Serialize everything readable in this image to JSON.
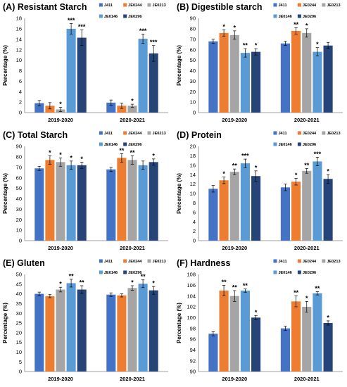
{
  "colors": {
    "J411": "#4472c4",
    "JE0244": "#ed7d31",
    "JE0213": "#a5a5a5",
    "JE0146": "#5b9bd5",
    "JE0296": "#264478",
    "axis": "#808080",
    "error_bar": "#000000"
  },
  "chart_data": [
    {
      "type": "bar",
      "title": "(A) Resistant Starch",
      "ylabel": "Percentage (%)",
      "ylim": [
        0,
        18
      ],
      "yticks": [
        0,
        2,
        4,
        6,
        8,
        10,
        12,
        14,
        16,
        18
      ],
      "categories": [
        "2019-2020",
        "2020-2021"
      ],
      "legend_placement": "top-right",
      "series": [
        {
          "name": "J411",
          "values": [
            1.8,
            1.9
          ],
          "errors": [
            0.5,
            0.5
          ],
          "stars": [
            "",
            ""
          ]
        },
        {
          "name": "JE0244",
          "values": [
            1.3,
            1.3
          ],
          "errors": [
            0.6,
            0.5
          ],
          "stars": [
            "",
            ""
          ]
        },
        {
          "name": "JE0213",
          "values": [
            0.6,
            1.3
          ],
          "errors": [
            0.4,
            0.3
          ],
          "stars": [
            "*",
            "*"
          ]
        },
        {
          "name": "JE0146",
          "values": [
            16.0,
            14.1
          ],
          "errors": [
            1.0,
            0.9
          ],
          "stars": [
            "***",
            "***"
          ]
        },
        {
          "name": "JE0296",
          "values": [
            14.3,
            11.3
          ],
          "errors": [
            1.5,
            1.5
          ],
          "stars": [
            "***",
            "***"
          ]
        }
      ]
    },
    {
      "type": "bar",
      "title": "(B) Digestible starch",
      "ylabel": "Percentage (%)",
      "ylim": [
        0,
        90
      ],
      "yticks": [
        0,
        10,
        20,
        30,
        40,
        50,
        60,
        70,
        80,
        90
      ],
      "categories": [
        "2019-2020",
        "2020-2021"
      ],
      "legend_placement": "top-right",
      "series": [
        {
          "name": "J411",
          "values": [
            68,
            66
          ],
          "errors": [
            2,
            2
          ],
          "stars": [
            "",
            ""
          ]
        },
        {
          "name": "JE0244",
          "values": [
            76,
            78
          ],
          "errors": [
            3,
            3
          ],
          "stars": [
            "*",
            "**"
          ]
        },
        {
          "name": "JE0213",
          "values": [
            74,
            76
          ],
          "errors": [
            4,
            4
          ],
          "stars": [
            "*",
            "*"
          ]
        },
        {
          "name": "JE0146",
          "values": [
            57,
            58
          ],
          "errors": [
            4,
            4
          ],
          "stars": [
            "**",
            "*"
          ]
        },
        {
          "name": "JE0296",
          "values": [
            58,
            64
          ],
          "errors": [
            3,
            3
          ],
          "stars": [
            "*",
            ""
          ]
        }
      ]
    },
    {
      "type": "bar",
      "title": "(C) Total Starch",
      "ylabel": "Percentage (%)",
      "ylim": [
        0,
        90
      ],
      "yticks": [
        0,
        10,
        20,
        30,
        40,
        50,
        60,
        70,
        80,
        90
      ],
      "categories": [
        "2019-2020",
        "2020-2021"
      ],
      "legend_placement": "top-right",
      "series": [
        {
          "name": "J411",
          "values": [
            69,
            68
          ],
          "errors": [
            2,
            2
          ],
          "stars": [
            "",
            ""
          ]
        },
        {
          "name": "JE0244",
          "values": [
            77,
            79
          ],
          "errors": [
            4,
            4
          ],
          "stars": [
            "*",
            "**"
          ]
        },
        {
          "name": "JE0213",
          "values": [
            75,
            77
          ],
          "errors": [
            4,
            4
          ],
          "stars": [
            "*",
            "**"
          ]
        },
        {
          "name": "JE0146",
          "values": [
            72,
            72
          ],
          "errors": [
            4,
            4
          ],
          "stars": [
            "*",
            ""
          ]
        },
        {
          "name": "JE0296",
          "values": [
            72,
            75
          ],
          "errors": [
            3,
            3
          ],
          "stars": [
            "*",
            "*"
          ]
        }
      ]
    },
    {
      "type": "bar",
      "title": "(D) Protein",
      "ylabel": "Percentage (%)",
      "ylim": [
        0,
        20
      ],
      "yticks": [
        0,
        2,
        4,
        6,
        8,
        10,
        12,
        14,
        16,
        18,
        20
      ],
      "categories": [
        "2019-2020",
        "2020-2021"
      ],
      "legend_placement": "top-right",
      "series": [
        {
          "name": "J411",
          "values": [
            11.0,
            11.3
          ],
          "errors": [
            0.7,
            0.7
          ],
          "stars": [
            "",
            ""
          ]
        },
        {
          "name": "JE0244",
          "values": [
            12.8,
            12.5
          ],
          "errors": [
            0.7,
            0.7
          ],
          "stars": [
            "*",
            "*"
          ]
        },
        {
          "name": "JE0213",
          "values": [
            14.6,
            14.8
          ],
          "errors": [
            0.6,
            0.5
          ],
          "stars": [
            "**",
            "**"
          ]
        },
        {
          "name": "JE0146",
          "values": [
            16.4,
            16.8
          ],
          "errors": [
            0.9,
            0.9
          ],
          "stars": [
            "***",
            "***"
          ]
        },
        {
          "name": "JE0296",
          "values": [
            13.7,
            13.1
          ],
          "errors": [
            1.1,
            0.9
          ],
          "stars": [
            "*",
            "*"
          ]
        }
      ]
    },
    {
      "type": "bar",
      "title": "(E) Gluten",
      "ylabel": "Percentage (%)",
      "ylim": [
        0,
        50
      ],
      "yticks": [
        0,
        5,
        10,
        15,
        20,
        25,
        30,
        35,
        40,
        45,
        50
      ],
      "categories": [
        "2019-2020",
        "2020-2021"
      ],
      "legend_placement": "top-right",
      "series": [
        {
          "name": "J411",
          "values": [
            40.0,
            39.6
          ],
          "errors": [
            0.9,
            0.9
          ],
          "stars": [
            "",
            ""
          ]
        },
        {
          "name": "JE0244",
          "values": [
            38.8,
            39.2
          ],
          "errors": [
            0.8,
            0.8
          ],
          "stars": [
            "",
            ""
          ]
        },
        {
          "name": "JE0213",
          "values": [
            42.2,
            43.0
          ],
          "errors": [
            1.2,
            1.2
          ],
          "stars": [
            "*",
            "*"
          ]
        },
        {
          "name": "JE0146",
          "values": [
            45.5,
            45.2
          ],
          "errors": [
            2.0,
            2.0
          ],
          "stars": [
            "**",
            "**"
          ]
        },
        {
          "name": "JE0296",
          "values": [
            42.2,
            41.8
          ],
          "errors": [
            2.0,
            2.0
          ],
          "stars": [
            "**",
            "*"
          ]
        }
      ]
    },
    {
      "type": "bar",
      "title": "(F) Hardness",
      "ylabel": "Percentage (%)",
      "ylim": [
        90,
        108
      ],
      "yticks": [
        90,
        92,
        94,
        96,
        98,
        100,
        102,
        104,
        106,
        108
      ],
      "categories": [
        "2019-2020",
        "2020-2021"
      ],
      "legend_placement": "top-right",
      "series": [
        {
          "name": "J411",
          "values": [
            97.0,
            98.0
          ],
          "errors": [
            0.4,
            0.4
          ],
          "stars": [
            "",
            ""
          ]
        },
        {
          "name": "JE0244",
          "values": [
            105.0,
            103.0
          ],
          "errors": [
            1.0,
            1.0
          ],
          "stars": [
            "**",
            "**"
          ]
        },
        {
          "name": "JE0213",
          "values": [
            104.0,
            102.0
          ],
          "errors": [
            1.0,
            1.0
          ],
          "stars": [
            "**",
            "*"
          ]
        },
        {
          "name": "JE0146",
          "values": [
            105.0,
            104.5
          ],
          "errors": [
            0.3,
            0.3
          ],
          "stars": [
            "**",
            "**"
          ]
        },
        {
          "name": "JE0296",
          "values": [
            100.0,
            99.0
          ],
          "errors": [
            0.4,
            0.4
          ],
          "stars": [
            "*",
            "*"
          ]
        }
      ]
    }
  ]
}
